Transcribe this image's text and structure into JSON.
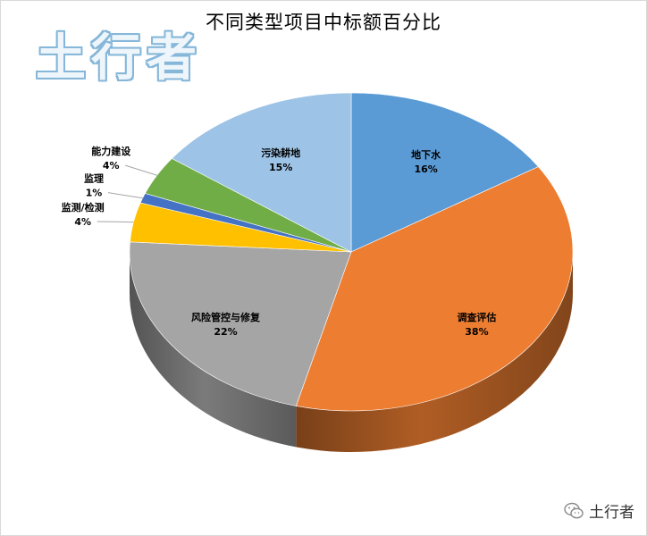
{
  "title": "不同类型项目中标额百分比",
  "watermark_text": "土行者",
  "source_badge": {
    "icon": "wechat-icon",
    "text": "土行者"
  },
  "chart_data": {
    "type": "pie",
    "title": "不同类型项目中标额百分比",
    "style": "3d",
    "slices": [
      {
        "label": "地下水",
        "value": 16,
        "display": "16%",
        "color": "#5b9bd5"
      },
      {
        "label": "调查评估",
        "value": 38,
        "display": "38%",
        "color": "#ed7d31"
      },
      {
        "label": "风险管控与修复",
        "value": 22,
        "display": "22%",
        "color": "#a5a5a5"
      },
      {
        "label": "监测/检测",
        "value": 4,
        "display": "4%",
        "color": "#ffc000"
      },
      {
        "label": "监理",
        "value": 1,
        "display": "1%",
        "color": "#4472c4"
      },
      {
        "label": "能力建设",
        "value": 4,
        "display": "4%",
        "color": "#70ad47"
      },
      {
        "label": "污染耕地",
        "value": 15,
        "display": "15%",
        "color": "#9dc3e6"
      }
    ]
  }
}
